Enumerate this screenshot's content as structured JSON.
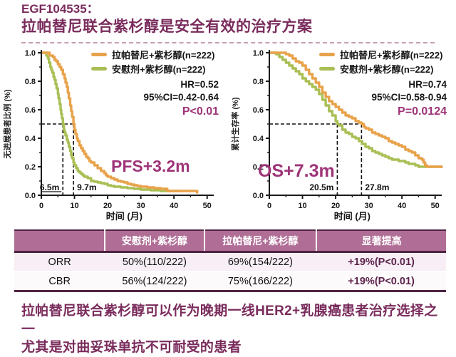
{
  "title": {
    "line1": "EGF104535：",
    "line2": "拉帕替尼联合紫杉醇是安全有效的治疗方案"
  },
  "colors": {
    "title_plum": "#7a2c5c",
    "stat_magenta": "#9e3478",
    "lapatinib_orange": "#e8a24a",
    "placebo_green": "#a9bf55",
    "table_header_bg": "#b06e96",
    "table_border": "#4e2342",
    "improvement_text": "#5d234c",
    "row_alt_bg": "#f8eef5"
  },
  "chart_data": [
    {
      "type": "line",
      "curve": "step",
      "name": "PFS",
      "xlabel": "时间 (月)",
      "ylabel": "无进展患者比例 (%)",
      "xlim": [
        0,
        52
      ],
      "ylim": [
        0,
        1.0
      ],
      "xticks": [
        0,
        10,
        20,
        30,
        40,
        50
      ],
      "yticks": [
        0.0,
        0.2,
        0.4,
        0.6,
        0.8,
        1.0
      ],
      "grid": false,
      "legend_position": "top-right",
      "stats": {
        "hr": "HR=0.52",
        "ci": "95%CI=0.42-0.64",
        "p": "P<0.01"
      },
      "annotation": "PFS+3.2m",
      "median_hline_y": 0.5,
      "medians": [
        {
          "x": 6.5,
          "label": "6.5m",
          "side": "left",
          "underline": true
        },
        {
          "x": 9.7,
          "label": "9.7m",
          "side": "right",
          "underline": false
        }
      ],
      "series": [
        {
          "id": "lapatinib-paclitaxel",
          "name": "拉帕替尼+紫杉醇(n=222)",
          "color": "#e8a24a",
          "median_months": 9.7,
          "points": [
            [
              0,
              1.0
            ],
            [
              2,
              1.0
            ],
            [
              2.5,
              0.98
            ],
            [
              3.5,
              0.97
            ],
            [
              4,
              0.95
            ],
            [
              4.5,
              0.94
            ],
            [
              5,
              0.92
            ],
            [
              5.5,
              0.9
            ],
            [
              6,
              0.88
            ],
            [
              6.5,
              0.85
            ],
            [
              7,
              0.82
            ],
            [
              7.3,
              0.79
            ],
            [
              7.7,
              0.76
            ],
            [
              8,
              0.72
            ],
            [
              8.3,
              0.68
            ],
            [
              8.7,
              0.63
            ],
            [
              9,
              0.59
            ],
            [
              9.3,
              0.55
            ],
            [
              9.7,
              0.5
            ],
            [
              10,
              0.46
            ],
            [
              10.3,
              0.43
            ],
            [
              10.7,
              0.4
            ],
            [
              11,
              0.38
            ],
            [
              11.5,
              0.35
            ],
            [
              12,
              0.33
            ],
            [
              12.5,
              0.31
            ],
            [
              13,
              0.29
            ],
            [
              13.5,
              0.27
            ],
            [
              14,
              0.26
            ],
            [
              14.5,
              0.24
            ],
            [
              15,
              0.23
            ],
            [
              16,
              0.21
            ],
            [
              17,
              0.19
            ],
            [
              18,
              0.17
            ],
            [
              19,
              0.155
            ],
            [
              19.5,
              0.14
            ],
            [
              20,
              0.13
            ],
            [
              21,
              0.12
            ],
            [
              22,
              0.11
            ],
            [
              23,
              0.1
            ],
            [
              24,
              0.095
            ],
            [
              25,
              0.09
            ],
            [
              26,
              0.08
            ],
            [
              27,
              0.075
            ],
            [
              28,
              0.07
            ],
            [
              29,
              0.065
            ],
            [
              30,
              0.06
            ],
            [
              32,
              0.055
            ],
            [
              34,
              0.05
            ],
            [
              36,
              0.045
            ],
            [
              38,
              0.03
            ],
            [
              47,
              0.03
            ],
            [
              47,
              0.02
            ]
          ]
        },
        {
          "id": "placebo-paclitaxel",
          "name": "安慰剂+紫杉醇(n=222)",
          "color": "#a9bf55",
          "median_months": 6.5,
          "points": [
            [
              0,
              1.0
            ],
            [
              1,
              1.0
            ],
            [
              1.5,
              0.98
            ],
            [
              2,
              0.96
            ],
            [
              2.3,
              0.93
            ],
            [
              2.7,
              0.9
            ],
            [
              3,
              0.88
            ],
            [
              3.3,
              0.86
            ],
            [
              3.7,
              0.83
            ],
            [
              4,
              0.81
            ],
            [
              4.3,
              0.78
            ],
            [
              4.6,
              0.75
            ],
            [
              5,
              0.71
            ],
            [
              5.2,
              0.68
            ],
            [
              5.5,
              0.64
            ],
            [
              5.8,
              0.6
            ],
            [
              6,
              0.57
            ],
            [
              6.2,
              0.54
            ],
            [
              6.5,
              0.5
            ],
            [
              6.8,
              0.46
            ],
            [
              7,
              0.44
            ],
            [
              7.3,
              0.42
            ],
            [
              7.7,
              0.39
            ],
            [
              8,
              0.37
            ],
            [
              8.3,
              0.34
            ],
            [
              8.7,
              0.31
            ],
            [
              9,
              0.28
            ],
            [
              9.3,
              0.26
            ],
            [
              9.7,
              0.23
            ],
            [
              10,
              0.21
            ],
            [
              10.5,
              0.19
            ],
            [
              11,
              0.17
            ],
            [
              11.5,
              0.16
            ],
            [
              12,
              0.15
            ],
            [
              12.5,
              0.14
            ],
            [
              13,
              0.13
            ],
            [
              14,
              0.12
            ],
            [
              15,
              0.1
            ],
            [
              16,
              0.095
            ],
            [
              17,
              0.09
            ],
            [
              18,
              0.085
            ],
            [
              19,
              0.08
            ],
            [
              20,
              0.07
            ],
            [
              21,
              0.065
            ],
            [
              22,
              0.06
            ],
            [
              24,
              0.055
            ],
            [
              26,
              0.05
            ],
            [
              28,
              0.045
            ],
            [
              30,
              0.04
            ],
            [
              33,
              0.035
            ],
            [
              36,
              0.03
            ],
            [
              42,
              0.03
            ]
          ]
        }
      ]
    },
    {
      "type": "line",
      "curve": "step",
      "name": "OS",
      "xlabel": "时间 (月)",
      "ylabel": "累计生存率 (%)",
      "xlim": [
        0,
        52
      ],
      "ylim": [
        0,
        1.0
      ],
      "xticks": [
        0,
        10,
        20,
        30,
        40,
        50
      ],
      "yticks": [
        0.0,
        0.2,
        0.4,
        0.6,
        0.8,
        1.0
      ],
      "grid": false,
      "legend_position": "top-right",
      "stats": {
        "hr": "HR=0.74",
        "ci": "95%CI=0.58-0.94",
        "p": "P=0.0124"
      },
      "annotation": "OS+7.3m",
      "median_hline_y": 0.5,
      "medians": [
        {
          "x": 20.5,
          "label": "20.5m",
          "side": "left",
          "underline": false
        },
        {
          "x": 27.8,
          "label": "27.8m",
          "side": "right",
          "underline": false
        }
      ],
      "series": [
        {
          "id": "lapatinib-paclitaxel",
          "name": "拉帕替尼+紫杉醇(n=222)",
          "color": "#e8a24a",
          "median_months": 27.8,
          "points": [
            [
              0,
              1.0
            ],
            [
              4,
              1.0
            ],
            [
              5,
              0.99
            ],
            [
              6,
              0.98
            ],
            [
              7,
              0.96
            ],
            [
              8,
              0.94
            ],
            [
              9,
              0.93
            ],
            [
              10,
              0.91
            ],
            [
              11,
              0.88
            ],
            [
              12,
              0.85
            ],
            [
              13,
              0.82
            ],
            [
              14,
              0.79
            ],
            [
              15,
              0.76
            ],
            [
              16,
              0.72
            ],
            [
              17,
              0.69
            ],
            [
              18,
              0.66
            ],
            [
              19,
              0.64
            ],
            [
              20,
              0.62
            ],
            [
              21,
              0.6
            ],
            [
              22,
              0.58
            ],
            [
              23,
              0.56
            ],
            [
              24,
              0.55
            ],
            [
              25,
              0.54
            ],
            [
              26,
              0.52
            ],
            [
              27,
              0.51
            ],
            [
              27.8,
              0.5
            ],
            [
              28.5,
              0.48
            ],
            [
              29,
              0.47
            ],
            [
              30,
              0.46
            ],
            [
              31,
              0.44
            ],
            [
              32,
              0.43
            ],
            [
              33,
              0.42
            ],
            [
              34,
              0.41
            ],
            [
              35,
              0.4
            ],
            [
              36,
              0.38
            ],
            [
              37,
              0.37
            ],
            [
              38,
              0.36
            ],
            [
              39,
              0.35
            ],
            [
              40,
              0.34
            ],
            [
              41,
              0.32
            ],
            [
              42,
              0.31
            ],
            [
              43,
              0.3
            ],
            [
              44,
              0.28
            ],
            [
              45,
              0.26
            ],
            [
              46,
              0.25
            ],
            [
              46.5,
              0.23
            ],
            [
              47,
              0.21
            ],
            [
              47.5,
              0.2
            ],
            [
              52,
              0.2
            ]
          ]
        },
        {
          "id": "placebo-paclitaxel",
          "name": "安慰剂+紫杉醇(n=222)",
          "color": "#a9bf55",
          "median_months": 20.5,
          "points": [
            [
              0,
              1.0
            ],
            [
              1.5,
              1.0
            ],
            [
              2,
              0.99
            ],
            [
              3,
              0.97
            ],
            [
              4,
              0.95
            ],
            [
              5,
              0.93
            ],
            [
              6,
              0.91
            ],
            [
              7,
              0.89
            ],
            [
              8,
              0.87
            ],
            [
              9,
              0.85
            ],
            [
              10,
              0.82
            ],
            [
              11,
              0.8
            ],
            [
              12,
              0.78
            ],
            [
              13,
              0.76
            ],
            [
              14,
              0.74
            ],
            [
              15,
              0.71
            ],
            [
              16,
              0.67
            ],
            [
              17,
              0.63
            ],
            [
              18,
              0.59
            ],
            [
              19,
              0.56
            ],
            [
              20,
              0.52
            ],
            [
              20.5,
              0.5
            ],
            [
              21,
              0.49
            ],
            [
              22,
              0.46
            ],
            [
              23,
              0.44
            ],
            [
              24,
              0.43
            ],
            [
              25,
              0.41
            ],
            [
              26,
              0.4
            ],
            [
              27,
              0.38
            ],
            [
              28,
              0.36
            ],
            [
              29,
              0.34
            ],
            [
              30,
              0.33
            ],
            [
              31,
              0.31
            ],
            [
              32,
              0.3
            ],
            [
              33,
              0.29
            ],
            [
              34,
              0.28
            ],
            [
              35,
              0.27
            ],
            [
              36,
              0.26
            ],
            [
              37,
              0.25
            ],
            [
              38,
              0.25
            ],
            [
              39,
              0.24
            ],
            [
              40,
              0.24
            ],
            [
              41,
              0.23
            ],
            [
              42,
              0.22
            ],
            [
              43,
              0.22
            ],
            [
              44,
              0.21
            ],
            [
              45,
              0.2
            ],
            [
              52,
              0.2
            ]
          ]
        }
      ]
    }
  ],
  "table": {
    "headers": [
      "",
      "安慰剂+紫杉醇",
      "拉帕替尼+紫杉醇",
      "显著提高"
    ],
    "rows": [
      {
        "label": "ORR",
        "placebo": "50%(110/222)",
        "lapatinib": "69%(154/222)",
        "improvement": "+19%(P<0.01)"
      },
      {
        "label": "CBR",
        "placebo": "56%(124/222)",
        "lapatinib": "75%(166/222)",
        "improvement": "+19%(P<0.01)"
      }
    ]
  },
  "footer": {
    "line1": "拉帕替尼联合紫杉醇可以作为晚期一线HER2+乳腺癌患者治疗选择之一",
    "line2": "尤其是对曲妥珠单抗不可耐受的患者"
  }
}
